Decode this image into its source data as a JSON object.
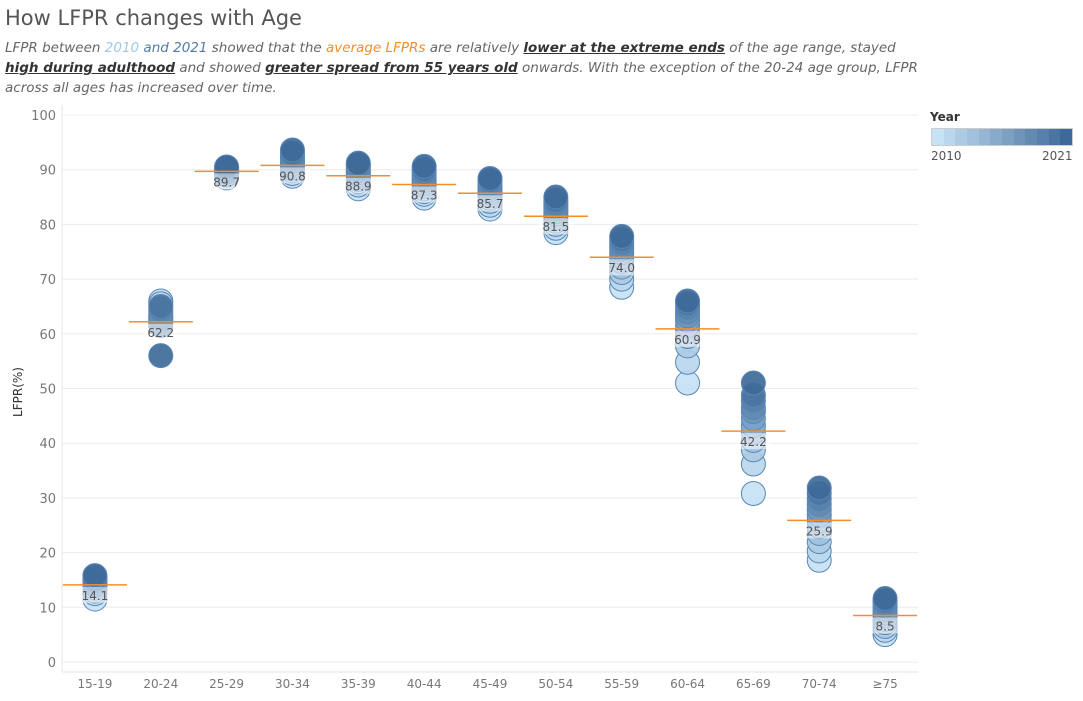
{
  "title": "How LFPR changes with Age",
  "subtitle": {
    "p1": "LFPR between ",
    "y2010": "2010",
    "and": " and ",
    "y2021": "2021",
    "p2": "  showed that the ",
    "avg": "average LFPRs",
    "p3": " are relatively ",
    "e1": "lower at the extreme ends",
    "p4": "  of the age range, stayed ",
    "e2": "high during adulthood",
    "p5": " and showed ",
    "e3": "greater spread from 55 years old",
    "p6": "  onwards. With the exception of the 20-24 age group, LFPR across all ages has increased over time."
  },
  "legend": {
    "title": "Year",
    "min_label": "2010",
    "max_label": "2021",
    "color_low": "#c6e2f5",
    "color_high": "#3e6a99"
  },
  "colors": {
    "avg_line": "#f28e2b",
    "bubble_stroke": "#5a86b5",
    "grid": "#ececec"
  },
  "chart_data": {
    "type": "scatter",
    "ylabel": "LFPR(%)",
    "xlabel": "",
    "ylim": [
      0,
      100
    ],
    "yticks": [
      0,
      10,
      20,
      30,
      40,
      50,
      60,
      70,
      80,
      90,
      100
    ],
    "years": [
      2010,
      2011,
      2012,
      2013,
      2014,
      2015,
      2016,
      2017,
      2018,
      2019,
      2020,
      2021
    ],
    "categories": [
      "15-19",
      "20-24",
      "25-29",
      "30-34",
      "35-39",
      "40-44",
      "45-49",
      "50-54",
      "55-59",
      "60-64",
      "65-69",
      "70-74",
      "≥75"
    ],
    "groups": [
      {
        "category": "15-19",
        "average": 14.1,
        "average_label": "14.1",
        "values": [
          11.5,
          12.5,
          13.0,
          13.5,
          14.0,
          14.2,
          14.5,
          14.8,
          15.0,
          15.5,
          15.0,
          15.8
        ]
      },
      {
        "category": "20-24",
        "average": 62.2,
        "average_label": "62.2",
        "values": [
          66.0,
          65.5,
          64.0,
          63.5,
          63.0,
          62.5,
          62.0,
          61.5,
          63.0,
          64.5,
          65.0,
          56.0
        ]
      },
      {
        "category": "25-29",
        "average": 89.7,
        "average_label": "89.7",
        "values": [
          88.5,
          89.0,
          89.2,
          89.5,
          89.6,
          89.8,
          90.0,
          90.1,
          90.2,
          90.3,
          90.4,
          90.5
        ]
      },
      {
        "category": "30-34",
        "average": 90.8,
        "average_label": "90.8",
        "values": [
          88.8,
          89.3,
          89.8,
          90.2,
          90.6,
          91.0,
          91.4,
          91.8,
          92.2,
          92.6,
          93.0,
          93.6
        ]
      },
      {
        "category": "35-39",
        "average": 88.9,
        "average_label": "88.9",
        "values": [
          86.5,
          87.2,
          87.8,
          88.2,
          88.6,
          89.0,
          89.4,
          89.8,
          90.2,
          90.6,
          90.9,
          91.2
        ]
      },
      {
        "category": "40-44",
        "average": 87.3,
        "average_label": "87.3",
        "values": [
          84.8,
          85.5,
          86.0,
          86.5,
          87.0,
          87.5,
          88.0,
          88.5,
          89.0,
          89.5,
          90.0,
          90.6
        ]
      },
      {
        "category": "45-49",
        "average": 85.7,
        "average_label": "85.7",
        "values": [
          82.8,
          83.5,
          84.2,
          84.8,
          85.3,
          85.8,
          86.3,
          86.8,
          87.3,
          87.7,
          88.0,
          88.4
        ]
      },
      {
        "category": "50-54",
        "average": 81.5,
        "average_label": "81.5",
        "values": [
          78.5,
          79.3,
          80.0,
          80.6,
          81.2,
          81.8,
          82.3,
          82.8,
          83.3,
          83.8,
          84.4,
          85.0
        ]
      },
      {
        "category": "55-59",
        "average": 74.0,
        "average_label": "74.0",
        "values": [
          68.5,
          70.0,
          71.2,
          72.2,
          73.2,
          74.0,
          74.8,
          75.5,
          76.0,
          76.6,
          77.2,
          77.8
        ]
      },
      {
        "category": "60-64",
        "average": 60.9,
        "average_label": "60.9",
        "values": [
          51.0,
          54.8,
          57.8,
          59.5,
          60.5,
          61.5,
          62.5,
          63.3,
          64.0,
          64.8,
          65.5,
          66.0
        ]
      },
      {
        "category": "65-69",
        "average": 42.2,
        "average_label": "42.2",
        "values": [
          30.8,
          36.2,
          38.8,
          40.5,
          42.0,
          43.2,
          44.5,
          45.8,
          46.5,
          47.8,
          48.8,
          51.0
        ]
      },
      {
        "category": "70-74",
        "average": 25.9,
        "average_label": "25.9",
        "values": [
          18.6,
          20.3,
          22.0,
          23.5,
          24.8,
          25.8,
          26.8,
          27.8,
          28.8,
          29.8,
          30.8,
          31.8
        ]
      },
      {
        "category": "≥75",
        "average": 8.5,
        "average_label": "8.5",
        "values": [
          5.0,
          5.8,
          6.5,
          7.2,
          7.8,
          8.4,
          9.0,
          9.6,
          10.2,
          10.8,
          11.2,
          11.6
        ]
      }
    ]
  }
}
